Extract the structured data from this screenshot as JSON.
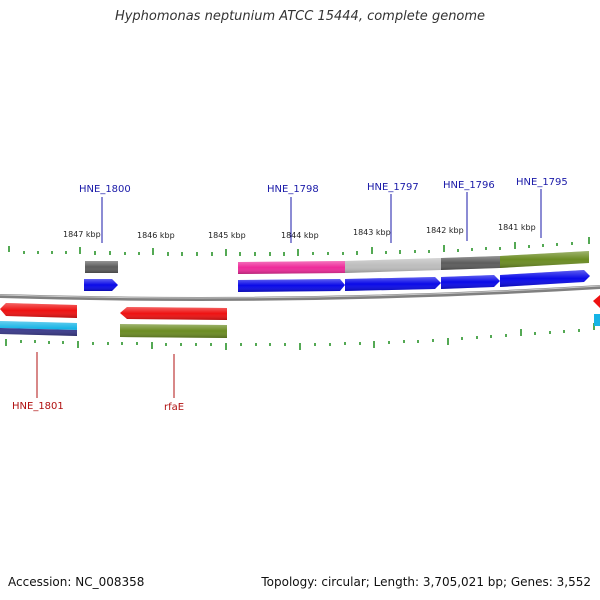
{
  "title": "Hyphomonas neptunium ATCC 15444, complete genome",
  "footer": {
    "accession": "Accession: NC_008358",
    "summary": "Topology: circular; Length: 3,705,021 bp; Genes: 3,552"
  },
  "scale_labels": [
    "1847 kbp",
    "1846 kbp",
    "1845 kbp",
    "1844 kbp",
    "1843 kbp",
    "1842 kbp",
    "1841 kbp"
  ],
  "gene_labels_top": [
    "HNE_1800",
    "HNE_1798",
    "HNE_1797",
    "HNE_1796",
    "HNE_1795"
  ],
  "gene_labels_bottom": [
    "HNE_1801",
    "rfaE"
  ],
  "colors": {
    "cds_forward": "#0a0ae8",
    "cds_reverse": "#ee1111",
    "tick": "#1a8c1a",
    "backbone": "#808080",
    "label_forward": "#1a1aa8",
    "label_reverse": "#b01010",
    "feature_pink": "#ee2a9a",
    "feature_silver": "#bdbdbd",
    "feature_dark_grey": "#5c5c5c",
    "feature_olive": "#6b8c22",
    "feature_cyan": "#16b4e6",
    "feature_navy": "#3a3a8c"
  }
}
